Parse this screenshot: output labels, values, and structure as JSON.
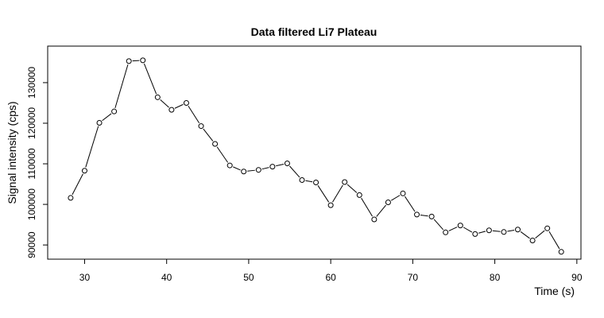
{
  "chart_data": {
    "type": "line",
    "title": "Data filtered Li7 Plateau",
    "xlabel": "Time (s)",
    "ylabel": "Signal intensity (cps)",
    "xlim": [
      25.5,
      90.5
    ],
    "ylim": [
      86500,
      139000
    ],
    "xticks": [
      30,
      40,
      50,
      60,
      70,
      80,
      90
    ],
    "yticks": [
      90000,
      100000,
      110000,
      120000,
      130000
    ],
    "grid": false,
    "marker": "open-circle",
    "series": [
      {
        "x": [
          28.3,
          30.0,
          31.8,
          33.6,
          35.4,
          37.1,
          38.9,
          40.6,
          42.4,
          44.2,
          45.9,
          47.7,
          49.4,
          51.2,
          52.9,
          54.7,
          56.5,
          58.2,
          60.0,
          61.7,
          63.5,
          65.3,
          67.0,
          68.8,
          70.5,
          72.3,
          74.0,
          75.8,
          77.6,
          79.3,
          81.1,
          82.8,
          84.6,
          86.4,
          88.1
        ],
        "y": [
          101600,
          108300,
          120100,
          122900,
          135300,
          135500,
          126400,
          123300,
          125000,
          119300,
          114900,
          109600,
          108100,
          108500,
          109300,
          110100,
          106000,
          105400,
          99800,
          105500,
          102300,
          96300,
          100500,
          102700,
          97500,
          97000,
          93100,
          94800,
          92700,
          93600,
          93200,
          93800,
          91100,
          94100,
          88300
        ]
      }
    ]
  }
}
